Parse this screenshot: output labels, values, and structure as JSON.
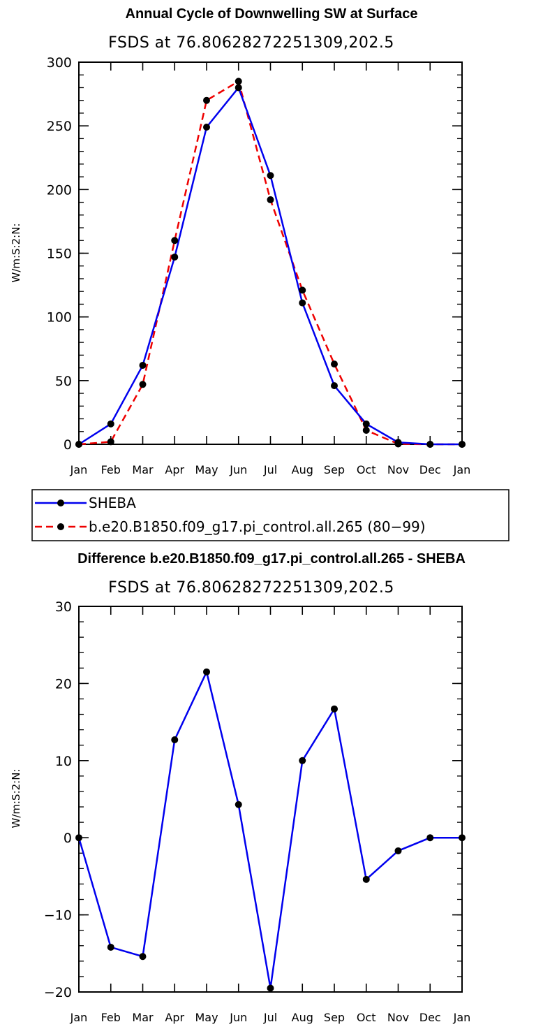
{
  "chart_data": [
    {
      "type": "line",
      "title": "Annual Cycle of Downwelling SW at Surface",
      "subtitle": "FSDS at 76.80628272251309,202.5",
      "ylabel": "W/m:S:2:N:",
      "xlabel": "",
      "ylim": [
        0,
        300
      ],
      "yticks": [
        "0",
        "50",
        "100",
        "150",
        "200",
        "250",
        "300"
      ],
      "yticks_values": [
        0,
        50,
        100,
        150,
        200,
        250,
        300
      ],
      "categories": [
        "Jan",
        "Feb",
        "Mar",
        "Apr",
        "May",
        "Jun",
        "Jul",
        "Aug",
        "Sep",
        "Oct",
        "Nov",
        "Dec",
        "Jan"
      ],
      "series": [
        {
          "name": "SHEBA",
          "color": "#0000ee",
          "dash": "solid",
          "values": [
            0,
            16,
            62,
            147,
            249,
            280,
            211,
            111,
            46,
            16,
            1.5,
            0,
            0
          ]
        },
        {
          "name": "b.e20.B1850.f09_g17.pi_control.all.265 (80−99)",
          "color": "#ee0000",
          "dash": "dashed",
          "values": [
            0,
            2,
            47,
            160,
            270,
            285,
            192,
            121,
            63,
            11,
            0.3,
            0,
            0
          ]
        }
      ],
      "legend": "bottom-left"
    },
    {
      "type": "line",
      "title": "Difference b.e20.B1850.f09_g17.pi_control.all.265 - SHEBA",
      "subtitle": "FSDS at 76.80628272251309,202.5",
      "ylabel": "W/m:S:2:N:",
      "xlabel": "",
      "ylim": [
        -20,
        30
      ],
      "yticks": [
        "−20",
        "−10",
        "0",
        "10",
        "20",
        "30"
      ],
      "yticks_values": [
        -20,
        -10,
        0,
        10,
        20,
        30
      ],
      "categories": [
        "Jan",
        "Feb",
        "Mar",
        "Apr",
        "May",
        "Jun",
        "Jul",
        "Aug",
        "Sep",
        "Oct",
        "Nov",
        "Dec",
        "Jan"
      ],
      "series": [
        {
          "name": "Difference",
          "color": "#0000ee",
          "dash": "solid",
          "values": [
            0,
            -14.2,
            -15.4,
            12.7,
            21.5,
            4.3,
            -19.5,
            10,
            16.7,
            -5.4,
            -1.7,
            0,
            0
          ]
        }
      ]
    }
  ]
}
